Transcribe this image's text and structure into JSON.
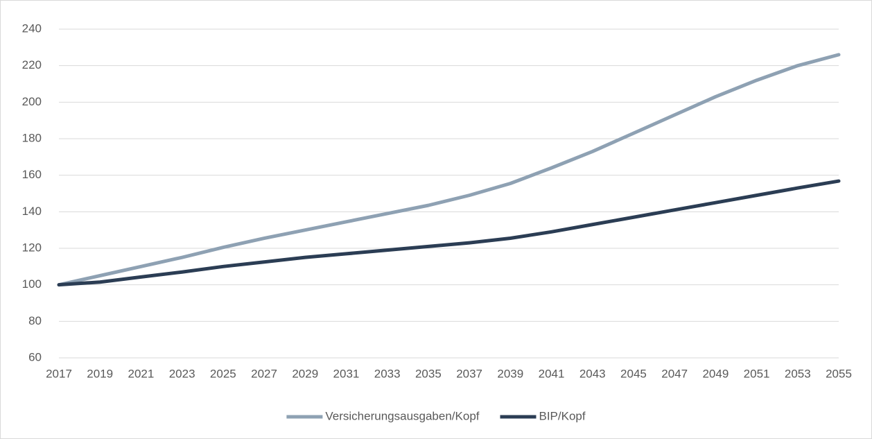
{
  "chart_data": {
    "type": "line",
    "x": [
      2017,
      2019,
      2021,
      2023,
      2025,
      2027,
      2029,
      2031,
      2033,
      2035,
      2037,
      2039,
      2041,
      2043,
      2045,
      2047,
      2049,
      2051,
      2053,
      2055
    ],
    "series": [
      {
        "name": "Versicherungsausgaben/Kopf",
        "color": "#8ea1b3",
        "values": [
          100,
          105,
          110,
          115,
          120.5,
          125.5,
          130,
          134.5,
          139,
          143.5,
          149,
          155.5,
          164,
          173,
          183,
          193,
          203,
          212,
          220,
          226
        ]
      },
      {
        "name": "BIP/Kopf",
        "color": "#2b3d54",
        "values": [
          100,
          101.5,
          104.3,
          107,
          110,
          112.5,
          115,
          117,
          119,
          121,
          123,
          125.5,
          129,
          133,
          137,
          141,
          145,
          149,
          153,
          156.8
        ]
      }
    ],
    "xlim": [
      2017,
      2055
    ],
    "xticks": [
      2017,
      2019,
      2021,
      2023,
      2025,
      2027,
      2029,
      2031,
      2033,
      2035,
      2037,
      2039,
      2041,
      2043,
      2045,
      2047,
      2049,
      2051,
      2053,
      2055
    ],
    "ylim": [
      60,
      240
    ],
    "yticks": [
      60,
      80,
      100,
      120,
      140,
      160,
      180,
      200,
      220,
      240
    ],
    "grid": true,
    "legend": "bottom"
  }
}
